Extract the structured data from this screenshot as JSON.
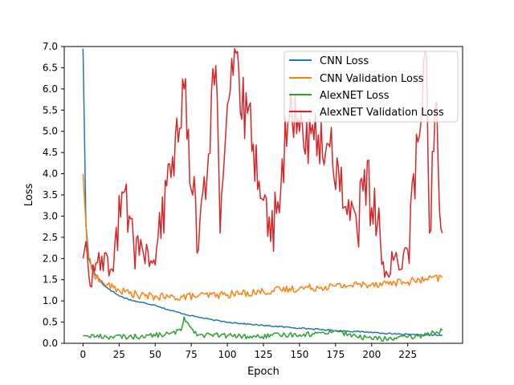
{
  "chart_data": {
    "type": "line",
    "title": "",
    "xlabel": "Epoch",
    "ylabel": "Loss",
    "xlim": [
      -13,
      263
    ],
    "ylim": [
      0,
      7.0
    ],
    "xticks": [
      0,
      25,
      50,
      75,
      100,
      125,
      150,
      175,
      200,
      225
    ],
    "yticks": [
      "0.0",
      "0.5",
      "1.0",
      "1.5",
      "2.0",
      "2.5",
      "3.0",
      "3.5",
      "4.0",
      "4.5",
      "5.0",
      "5.5",
      "6.0",
      "6.5",
      "7.0"
    ],
    "grid": false,
    "legend_position": "top-right",
    "x_points": "0 to 249, one point per epoch",
    "series": [
      {
        "name": "CNN Loss",
        "color": "#1f77b4",
        "keypoints": [
          [
            0,
            7.0
          ],
          [
            2,
            2.8
          ],
          [
            4,
            2.0
          ],
          [
            8,
            1.65
          ],
          [
            15,
            1.35
          ],
          [
            25,
            1.12
          ],
          [
            35,
            1.0
          ],
          [
            50,
            0.9
          ],
          [
            60,
            0.78
          ],
          [
            75,
            0.65
          ],
          [
            90,
            0.55
          ],
          [
            100,
            0.5
          ],
          [
            115,
            0.45
          ],
          [
            125,
            0.42
          ],
          [
            150,
            0.36
          ],
          [
            175,
            0.3
          ],
          [
            200,
            0.26
          ],
          [
            215,
            0.22
          ],
          [
            230,
            0.2
          ],
          [
            249,
            0.19
          ]
        ]
      },
      {
        "name": "CNN Validation Loss",
        "color": "#ff7f0e",
        "keypoints": [
          [
            0,
            4.0
          ],
          [
            3,
            2.2
          ],
          [
            6,
            1.75
          ],
          [
            12,
            1.45
          ],
          [
            25,
            1.25
          ],
          [
            40,
            1.12
          ],
          [
            60,
            1.08
          ],
          [
            80,
            1.12
          ],
          [
            100,
            1.15
          ],
          [
            125,
            1.22
          ],
          [
            150,
            1.3
          ],
          [
            175,
            1.35
          ],
          [
            200,
            1.4
          ],
          [
            225,
            1.45
          ],
          [
            249,
            1.55
          ]
        ]
      },
      {
        "name": "AlexNET Loss",
        "color": "#2ca02c",
        "keypoints": [
          [
            0,
            0.18
          ],
          [
            20,
            0.15
          ],
          [
            40,
            0.16
          ],
          [
            60,
            0.22
          ],
          [
            68,
            0.3
          ],
          [
            70,
            0.62
          ],
          [
            74,
            0.4
          ],
          [
            80,
            0.2
          ],
          [
            100,
            0.18
          ],
          [
            120,
            0.15
          ],
          [
            140,
            0.2
          ],
          [
            160,
            0.22
          ],
          [
            175,
            0.3
          ],
          [
            190,
            0.15
          ],
          [
            210,
            0.1
          ],
          [
            230,
            0.15
          ],
          [
            249,
            0.3
          ]
        ]
      },
      {
        "name": "AlexNET Validation Loss",
        "color": "#d62728",
        "keypoints": [
          [
            0,
            2.0
          ],
          [
            2,
            2.4
          ],
          [
            5,
            1.35
          ],
          [
            10,
            1.9
          ],
          [
            20,
            1.75
          ],
          [
            28,
            3.55
          ],
          [
            35,
            2.4
          ],
          [
            50,
            1.85
          ],
          [
            62,
            4.4
          ],
          [
            70,
            6.0
          ],
          [
            80,
            2.2
          ],
          [
            92,
            6.55
          ],
          [
            95,
            2.6
          ],
          [
            103,
            6.72
          ],
          [
            118,
            4.7
          ],
          [
            130,
            2.4
          ],
          [
            143,
            5.3
          ],
          [
            160,
            4.8
          ],
          [
            170,
            4.7
          ],
          [
            190,
            2.6
          ],
          [
            195,
            4.1
          ],
          [
            210,
            1.7
          ],
          [
            225,
            2.2
          ],
          [
            238,
            6.8
          ],
          [
            240,
            2.6
          ],
          [
            244,
            5.6
          ],
          [
            249,
            2.6
          ]
        ]
      }
    ]
  },
  "legend": {
    "items": [
      {
        "label": "CNN Loss",
        "color": "#1f77b4"
      },
      {
        "label": "CNN Validation Loss",
        "color": "#ff7f0e"
      },
      {
        "label": "AlexNET Loss",
        "color": "#2ca02c"
      },
      {
        "label": "AlexNET Validation Loss",
        "color": "#d62728"
      }
    ]
  }
}
